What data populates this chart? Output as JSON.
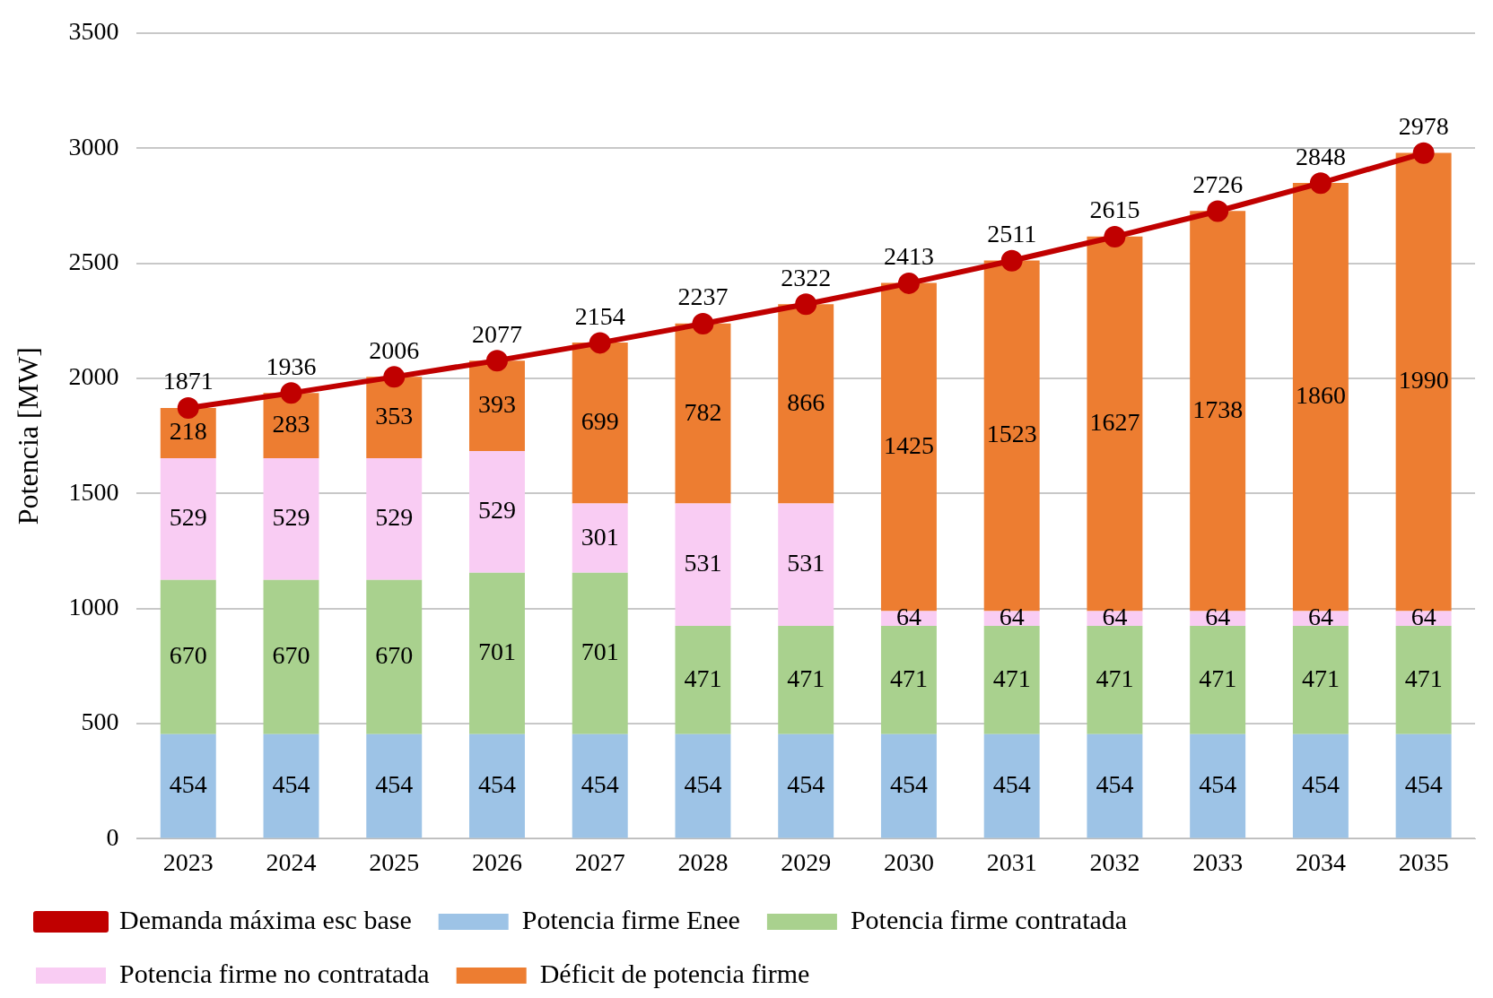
{
  "chart_data": {
    "type": "bar",
    "ylabel": "Potencia [MW]",
    "categories": [
      "2023",
      "2024",
      "2025",
      "2026",
      "2027",
      "2028",
      "2029",
      "2030",
      "2031",
      "2032",
      "2033",
      "2034",
      "2035"
    ],
    "ylim": [
      0,
      3500
    ],
    "yticks": [
      0,
      500,
      1000,
      1500,
      2000,
      2500,
      3000,
      3500
    ],
    "grid": "y",
    "legend": "bottom",
    "stacked": true,
    "data_labels": true,
    "series": [
      {
        "name": "Potencia firme Enee",
        "color": "#9dc3e6",
        "values": [
          454,
          454,
          454,
          454,
          454,
          454,
          454,
          454,
          454,
          454,
          454,
          454,
          454
        ]
      },
      {
        "name": "Potencia firme contratada",
        "color": "#a9d18e",
        "values": [
          670,
          670,
          670,
          701,
          701,
          471,
          471,
          471,
          471,
          471,
          471,
          471,
          471
        ]
      },
      {
        "name": "Potencia firme no contratada",
        "color": "#f9ccf3",
        "values": [
          529,
          529,
          529,
          529,
          301,
          531,
          531,
          64,
          64,
          64,
          64,
          64,
          64
        ]
      },
      {
        "name": "Déficit de potencia firme",
        "color": "#ed7d31",
        "values": [
          218,
          283,
          353,
          393,
          699,
          782,
          866,
          1425,
          1523,
          1627,
          1738,
          1860,
          1990
        ]
      },
      {
        "name": "Demanda máxima esc base",
        "type": "line",
        "color": "#c00000",
        "marker": "circle",
        "line_style": "solid",
        "values": [
          1871,
          1936,
          2006,
          2077,
          2154,
          2237,
          2322,
          2413,
          2511,
          2615,
          2726,
          2848,
          2978
        ]
      }
    ]
  }
}
